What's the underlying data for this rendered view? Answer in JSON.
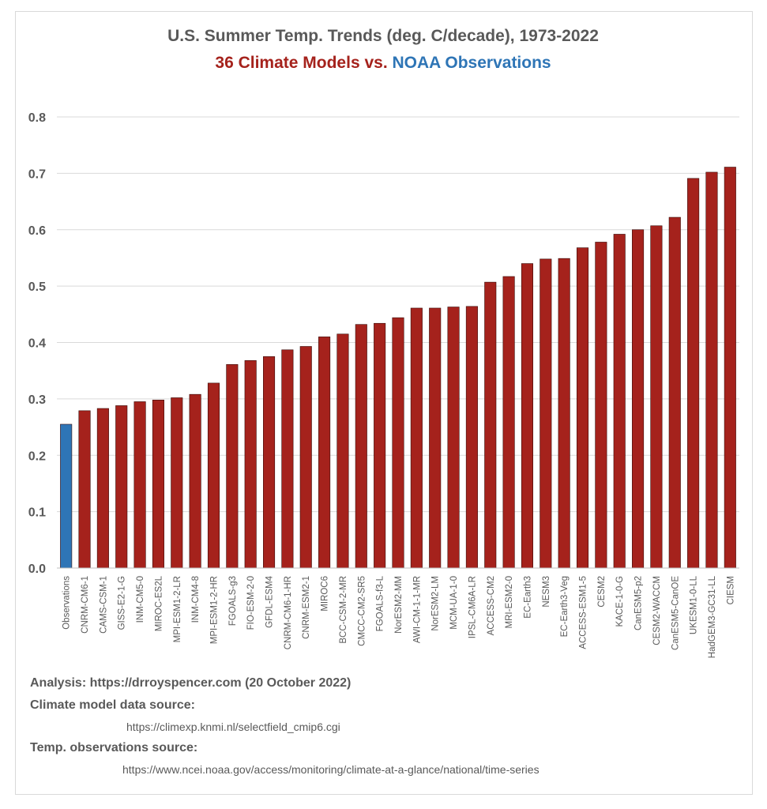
{
  "chart_data": {
    "type": "bar",
    "title": "U.S. Summer Temp. Trends (deg. C/decade), 1973-2022",
    "subtitle_parts": [
      "36 Climate Models",
      " vs. ",
      "NOAA Observations"
    ],
    "ylim": [
      0,
      0.8
    ],
    "yticks": [
      "0.0",
      "0.1",
      "0.2",
      "0.3",
      "0.4",
      "0.5",
      "0.6",
      "0.7",
      "0.8"
    ],
    "grid": true,
    "categories": [
      "Observations",
      "CNRM-CM6-1",
      "CAMS-CSM-1",
      "GISS-E2-1-G",
      "INM-CM5-0",
      "MIROC-ES2L",
      "MPI-ESM1-2-LR",
      "INM-CM4-8",
      "MPI-ESM1-2-HR",
      "FGOALS-g3",
      "FIO-ESM-2-0",
      "GFDL-ESM4",
      "CNRM-CM6-1-HR",
      "CNRM-ESM2-1",
      "MIROC6",
      "BCC-CSM-2-MR",
      "CMCC-CM2-SR5",
      "FGOALS-f3-L",
      "NorESM2-MM",
      "AWI-CM-1-1-MR",
      "NorESM2-LM",
      "MCM-UA-1-0",
      "IPSL-CM6A-LR",
      "ACCESS-CM2",
      "MRI-ESM2-0",
      "EC-Earth3",
      "NESM3",
      "EC-Earth3-Veg",
      "ACCESS-ESM1-5",
      "CESM2",
      "KACE-1-0-G",
      "CanESM5-p2",
      "CESM2-WACCM",
      "CanESM5-CanOE",
      "UKESM1-0-LL",
      "HadGEM3-GC31-LL",
      "CIESM"
    ],
    "values": [
      0.255,
      0.279,
      0.283,
      0.288,
      0.295,
      0.298,
      0.302,
      0.308,
      0.328,
      0.361,
      0.368,
      0.375,
      0.387,
      0.393,
      0.41,
      0.415,
      0.432,
      0.434,
      0.444,
      0.461,
      0.461,
      0.463,
      0.464,
      0.507,
      0.517,
      0.54,
      0.548,
      0.549,
      0.568,
      0.578,
      0.592,
      0.6,
      0.607,
      0.622,
      0.691,
      0.702,
      0.711
    ],
    "colors": {
      "observations": "#2e75b6",
      "models": "#a5221c",
      "grid": "#d9d9d9",
      "axis_text": "#595959"
    }
  },
  "notes": {
    "analysis": "Analysis: https://drroyspencer.com (20 October 2022)",
    "model_source_label": "Climate model data source:",
    "model_source_url": "https://climexp.knmi.nl/selectfield_cmip6.cgi",
    "obs_source_label": "Temp. observations source:",
    "obs_source_url": "https://www.ncei.noaa.gov/access/monitoring/climate-at-a-glance/national/time-series"
  }
}
